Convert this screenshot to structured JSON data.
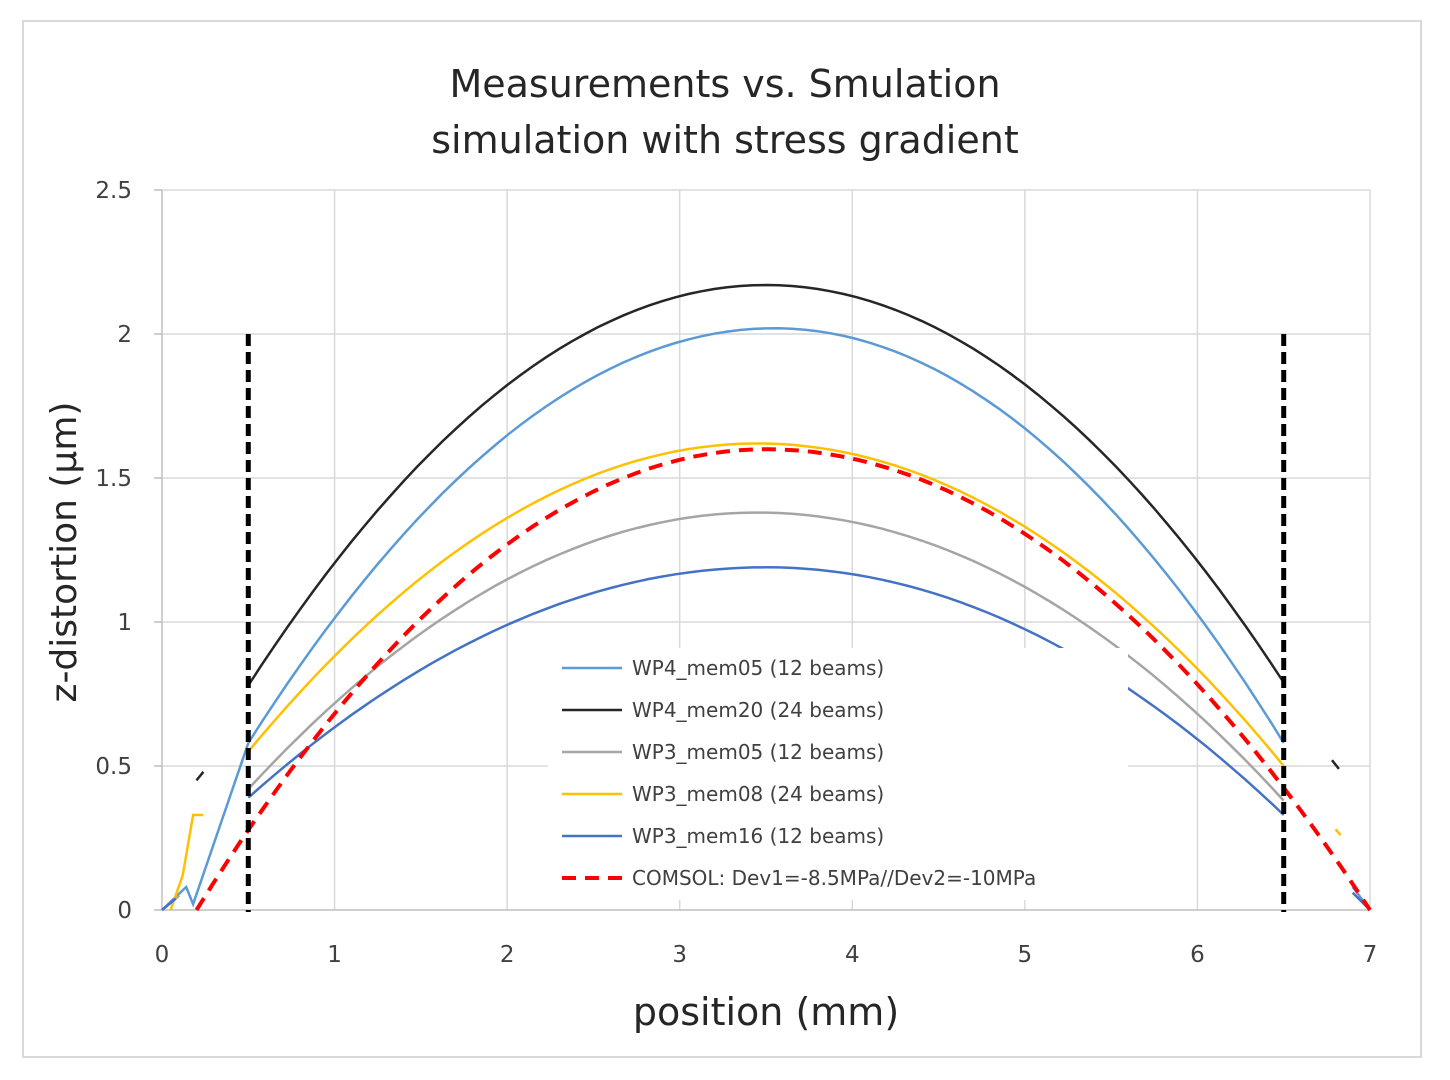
{
  "chart_data": {
    "type": "line",
    "title": "Measurements vs. Smulation",
    "subtitle": "simulation with stress gradient",
    "xlabel": "position (mm)",
    "ylabel": "z-distortion (µm)",
    "xlim": [
      0,
      7
    ],
    "ylim": [
      0,
      2.5
    ],
    "xticks": [
      "0",
      "1",
      "2",
      "3",
      "4",
      "5",
      "6",
      "7"
    ],
    "yticks": [
      "0",
      "0.5",
      "1",
      "1.5",
      "2",
      "2.5"
    ],
    "grid": true,
    "legend_position": "center-bottom",
    "series": [
      {
        "name": "WP4_mem05 (12 beams)",
        "color": "#5b9bd5",
        "style": "solid",
        "peak_x": 3.55,
        "peak_y": 2.02,
        "x_range": [
          0.5,
          6.5
        ],
        "end_left": 0.58,
        "end_right": 0.58,
        "stub_left": [
          [
            0.0,
            0.0
          ],
          [
            0.14,
            0.08
          ],
          [
            0.18,
            0.02
          ],
          [
            0.5,
            0.58
          ]
        ],
        "stub_right": [
          [
            6.9,
            0.08
          ],
          [
            7.0,
            0.0
          ]
        ]
      },
      {
        "name": "WP4_mem20 (24 beams)",
        "color": "#262626",
        "style": "solid",
        "peak_x": 3.5,
        "peak_y": 2.17,
        "x_range": [
          0.5,
          6.5
        ],
        "end_left": 0.78,
        "end_right": 0.79,
        "stub_left": [
          [
            0.2,
            0.45
          ],
          [
            0.24,
            0.48
          ]
        ],
        "stub_right": [
          [
            6.78,
            0.52
          ],
          [
            6.82,
            0.49
          ]
        ]
      },
      {
        "name": "WP3_mem05 (12 beams)",
        "color": "#a5a5a5",
        "style": "solid",
        "peak_x": 3.45,
        "peak_y": 1.38,
        "x_range": [
          0.5,
          6.5
        ],
        "end_left": 0.42,
        "end_right": 0.38,
        "stub_left": [
          [
            0.0,
            0.0
          ],
          [
            0.1,
            0.05
          ]
        ],
        "stub_right": [
          [
            6.95,
            0.03
          ],
          [
            7.0,
            0.0
          ]
        ]
      },
      {
        "name": "WP3_mem08 (24 beams)",
        "color": "#ffc000",
        "style": "solid",
        "peak_x": 3.45,
        "peak_y": 1.62,
        "x_range": [
          0.5,
          6.5
        ],
        "end_left": 0.55,
        "end_right": 0.5,
        "stub_left": [
          [
            0.05,
            0.0
          ],
          [
            0.12,
            0.12
          ],
          [
            0.18,
            0.33
          ],
          [
            0.24,
            0.33
          ]
        ],
        "stub_right": [
          [
            6.8,
            0.28
          ],
          [
            6.83,
            0.26
          ]
        ]
      },
      {
        "name": "WP3_mem16 (12 beams)",
        "color": "#4472c4",
        "style": "solid",
        "peak_x": 3.5,
        "peak_y": 1.19,
        "x_range": [
          0.5,
          6.5
        ],
        "end_left": 0.39,
        "end_right": 0.33,
        "stub_left": [
          [
            0.0,
            0.0
          ],
          [
            0.08,
            0.04
          ]
        ],
        "stub_right": [
          [
            6.9,
            0.06
          ],
          [
            7.0,
            0.0
          ]
        ]
      },
      {
        "name": "COMSOL: Dev1=-8.5MPa//Dev2=-10MPa",
        "color": "#ff0000",
        "style": "dashed",
        "peak_x": 3.5,
        "peak_y": 1.6,
        "x_range": [
          0.2,
          7.0
        ],
        "end_left": 0.0,
        "end_right": 0.0,
        "stub_left": [],
        "stub_right": []
      }
    ],
    "vertical_markers": [
      {
        "x": 0.5,
        "y_top": 2.0,
        "color": "#000000",
        "style": "dashed"
      },
      {
        "x": 6.5,
        "y_top": 2.0,
        "color": "#000000",
        "style": "dashed"
      }
    ]
  }
}
